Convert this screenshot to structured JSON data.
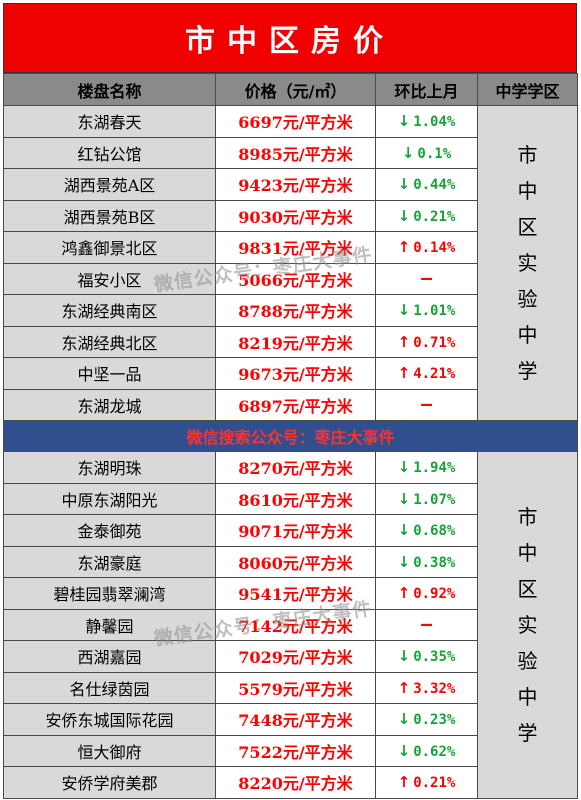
{
  "title": "市中区房价",
  "headers": {
    "name": "楼盘名称",
    "price": "价格（元/㎡）",
    "change": "环比上月",
    "school": "中学学区"
  },
  "banner": "微信搜索公众号：枣庄大事件",
  "watermark": "微信公众号：枣庄大事件",
  "group1": {
    "school": "市中区实验中学",
    "rows": [
      {
        "name": "东湖春天",
        "price": "6697元/平方米",
        "dir": "down",
        "arrow": "↓",
        "change": "1.04%"
      },
      {
        "name": "红钻公馆",
        "price": "8985元/平方米",
        "dir": "down",
        "arrow": "↓",
        "change": "0.1%"
      },
      {
        "name": "湖西景苑A区",
        "price": "9423元/平方米",
        "dir": "down",
        "arrow": "↓",
        "change": "0.44%"
      },
      {
        "name": "湖西景苑B区",
        "price": "9030元/平方米",
        "dir": "down",
        "arrow": "↓",
        "change": "0.21%"
      },
      {
        "name": "鸿鑫御景北区",
        "price": "9831元/平方米",
        "dir": "up",
        "arrow": "↑",
        "change": "0.14%"
      },
      {
        "name": "福安小区",
        "price": "5066元/平方米",
        "dir": "flat",
        "arrow": "",
        "change": "—"
      },
      {
        "name": "东湖经典南区",
        "price": "8788元/平方米",
        "dir": "down",
        "arrow": "↓",
        "change": "1.01%"
      },
      {
        "name": "东湖经典北区",
        "price": "8219元/平方米",
        "dir": "up",
        "arrow": "↑",
        "change": "0.71%"
      },
      {
        "name": "中坚一品",
        "price": "9673元/平方米",
        "dir": "up",
        "arrow": "↑",
        "change": "4.21%"
      },
      {
        "name": "东湖龙城",
        "price": "6897元/平方米",
        "dir": "flat",
        "arrow": "",
        "change": "—"
      }
    ]
  },
  "group2": {
    "school": "市中区实验中学",
    "rows": [
      {
        "name": "东湖明珠",
        "price": "8270元/平方米",
        "dir": "down",
        "arrow": "↓",
        "change": "1.94%"
      },
      {
        "name": "中原东湖阳光",
        "price": "8610元/平方米",
        "dir": "down",
        "arrow": "↓",
        "change": "1.07%"
      },
      {
        "name": "金泰御苑",
        "price": "9071元/平方米",
        "dir": "down",
        "arrow": "↓",
        "change": "0.68%"
      },
      {
        "name": "东湖豪庭",
        "price": "8060元/平方米",
        "dir": "down",
        "arrow": "↓",
        "change": "0.38%"
      },
      {
        "name": "碧桂园翡翠澜湾",
        "price": "9541元/平方米",
        "dir": "up",
        "arrow": "↑",
        "change": "0.92%"
      },
      {
        "name": "静馨园",
        "price": "7142元/平方米",
        "dir": "flat",
        "arrow": "",
        "change": "—"
      },
      {
        "name": "西湖嘉园",
        "price": "7029元/平方米",
        "dir": "down",
        "arrow": "↓",
        "change": "0.35%"
      },
      {
        "name": "名仕绿茵园",
        "price": "5579元/平方米",
        "dir": "up",
        "arrow": "↑",
        "change": "3.32%"
      },
      {
        "name": "安侨东城国际花园",
        "price": "7448元/平方米",
        "dir": "down",
        "arrow": "↓",
        "change": "0.23%"
      },
      {
        "name": "恒大御府",
        "price": "7522元/平方米",
        "dir": "down",
        "arrow": "↓",
        "change": "0.62%"
      },
      {
        "name": "安侨学府美郡",
        "price": "8220元/平方米",
        "dir": "up",
        "arrow": "↑",
        "change": "0.21%"
      }
    ]
  },
  "colors": {
    "title_bg": "#f00000",
    "header_bg": "#8a8a8a",
    "banner_bg": "#2f4f8f",
    "price": "#ff0000",
    "down": "#18a33a",
    "up": "#ff0000"
  }
}
